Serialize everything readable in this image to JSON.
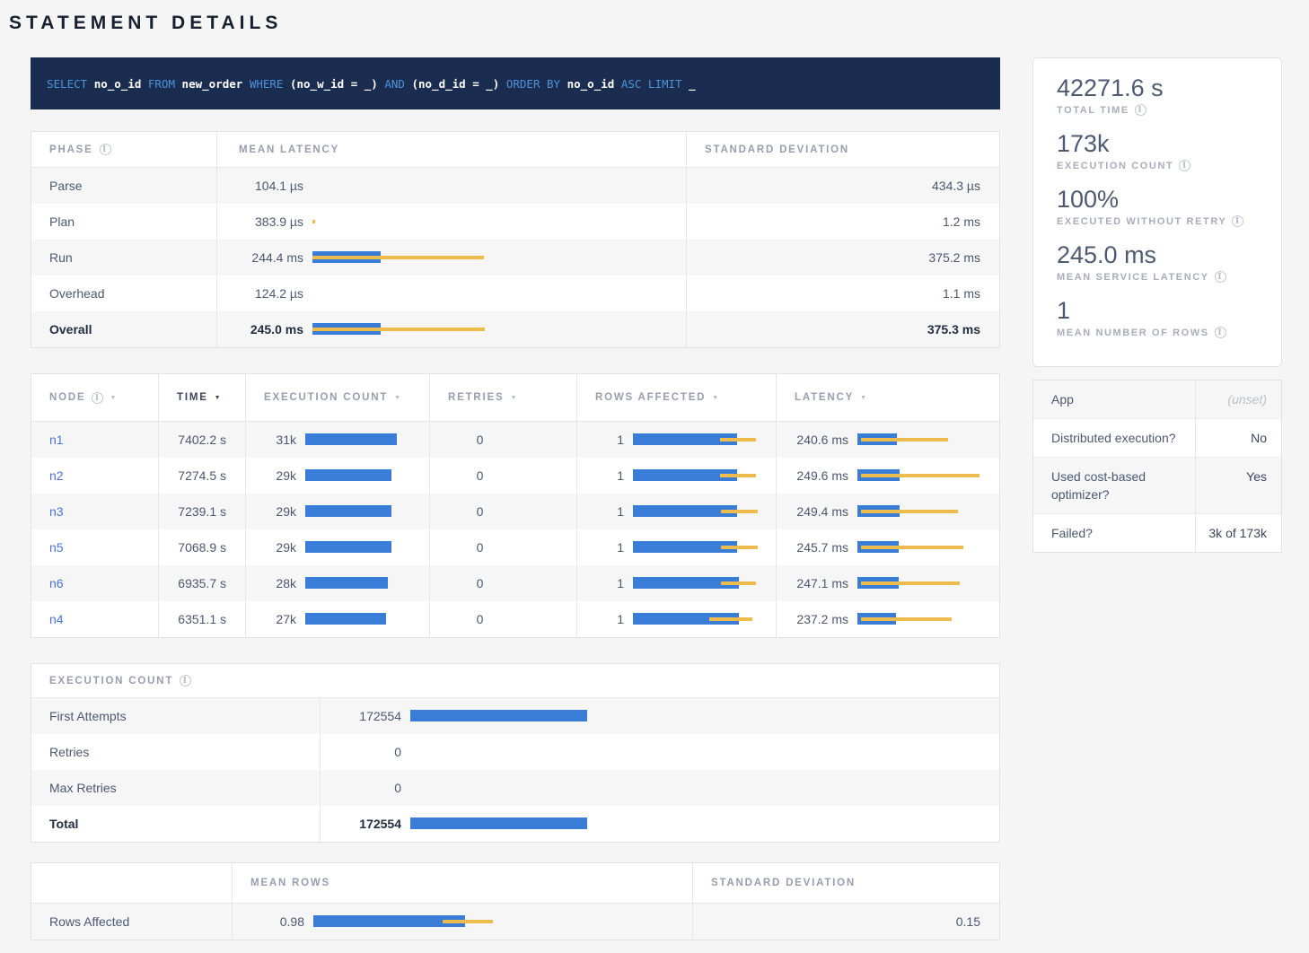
{
  "page": {
    "title": "STATEMENT DETAILS"
  },
  "sql": {
    "tokens": [
      {
        "text": "SELECT",
        "type": "kw"
      },
      {
        "text": "no_o_id",
        "type": "id"
      },
      {
        "text": "FROM",
        "type": "kw"
      },
      {
        "text": "new_order",
        "type": "id"
      },
      {
        "text": "WHERE",
        "type": "kw"
      },
      {
        "text": "(no_w_id = _)",
        "type": "id"
      },
      {
        "text": "AND",
        "type": "kw"
      },
      {
        "text": "(no_d_id = _)",
        "type": "id"
      },
      {
        "text": "ORDER BY",
        "type": "kw"
      },
      {
        "text": "no_o_id",
        "type": "id"
      },
      {
        "text": "ASC LIMIT",
        "type": "kw"
      },
      {
        "text": "_",
        "type": "id"
      }
    ]
  },
  "phase_table": {
    "columns": [
      "PHASE",
      "MEAN LATENCY",
      "STANDARD DEVIATION"
    ],
    "rows": [
      {
        "phase": "Parse",
        "mean": "104.1 µs",
        "std": "434.3 µs",
        "bar": null,
        "bold": false
      },
      {
        "phase": "Plan",
        "mean": "383.9 µs",
        "std": "1.2 ms",
        "bar": {
          "yellow": [
            0,
            0.7
          ]
        },
        "bold": false
      },
      {
        "phase": "Run",
        "mean": "244.4 ms",
        "std": "375.2 ms",
        "bar": {
          "blue": [
            0,
            18.6
          ],
          "yellow": [
            0,
            47
          ]
        },
        "bold": false
      },
      {
        "phase": "Overhead",
        "mean": "124.2 µs",
        "std": "1.1 ms",
        "bar": null,
        "bold": false
      },
      {
        "phase": "Overall",
        "mean": "245.0 ms",
        "std": "375.3 ms",
        "bar": {
          "blue": [
            0,
            18.7
          ],
          "yellow": [
            0,
            47.3
          ]
        },
        "bold": true
      }
    ]
  },
  "node_table": {
    "columns": [
      {
        "label": "NODE",
        "info": true,
        "active": false
      },
      {
        "label": "TIME",
        "info": false,
        "active": true
      },
      {
        "label": "EXECUTION COUNT",
        "info": false,
        "active": false
      },
      {
        "label": "RETRIES",
        "info": false,
        "active": false
      },
      {
        "label": "ROWS AFFECTED",
        "info": false,
        "active": false
      },
      {
        "label": "LATENCY",
        "info": false,
        "active": false
      }
    ],
    "rows": [
      {
        "node": "n1",
        "time": "7402.2 s",
        "exec_count": "31k",
        "exec_bar": {
          "blue": [
            0,
            80
          ]
        },
        "retries": "0",
        "rows_affected": "1",
        "rows_bar": {
          "blue": [
            0,
            78
          ],
          "yellow": [
            65,
            92
          ]
        },
        "latency": "240.6 ms",
        "latency_bar": {
          "blue": [
            0,
            30
          ],
          "yellow": [
            3,
            68
          ]
        }
      },
      {
        "node": "n2",
        "time": "7274.5 s",
        "exec_count": "29k",
        "exec_bar": {
          "blue": [
            0,
            75
          ]
        },
        "retries": "0",
        "rows_affected": "1",
        "rows_bar": {
          "blue": [
            0,
            78
          ],
          "yellow": [
            65,
            92
          ]
        },
        "latency": "249.6 ms",
        "latency_bar": {
          "blue": [
            0,
            32
          ],
          "yellow": [
            3,
            92
          ]
        }
      },
      {
        "node": "n3",
        "time": "7239.1 s",
        "exec_count": "29k",
        "exec_bar": {
          "blue": [
            0,
            75
          ]
        },
        "retries": "0",
        "rows_affected": "1",
        "rows_bar": {
          "blue": [
            0,
            78
          ],
          "yellow": [
            66,
            93
          ]
        },
        "latency": "249.4 ms",
        "latency_bar": {
          "blue": [
            0,
            32
          ],
          "yellow": [
            3,
            76
          ]
        }
      },
      {
        "node": "n5",
        "time": "7068.9 s",
        "exec_count": "29k",
        "exec_bar": {
          "blue": [
            0,
            75
          ]
        },
        "retries": "0",
        "rows_affected": "1",
        "rows_bar": {
          "blue": [
            0,
            78
          ],
          "yellow": [
            66,
            93
          ]
        },
        "latency": "245.7 ms",
        "latency_bar": {
          "blue": [
            0,
            31
          ],
          "yellow": [
            3,
            80
          ]
        }
      },
      {
        "node": "n6",
        "time": "6935.7 s",
        "exec_count": "28k",
        "exec_bar": {
          "blue": [
            0,
            72
          ]
        },
        "retries": "0",
        "rows_affected": "1",
        "rows_bar": {
          "blue": [
            0,
            79
          ],
          "yellow": [
            66,
            92
          ]
        },
        "latency": "247.1 ms",
        "latency_bar": {
          "blue": [
            0,
            31
          ],
          "yellow": [
            3,
            77
          ]
        }
      },
      {
        "node": "n4",
        "time": "6351.1 s",
        "exec_count": "27k",
        "exec_bar": {
          "blue": [
            0,
            70
          ]
        },
        "retries": "0",
        "rows_affected": "1",
        "rows_bar": {
          "blue": [
            0,
            79
          ],
          "yellow": [
            57,
            89
          ]
        },
        "latency": "237.2 ms",
        "latency_bar": {
          "blue": [
            0,
            29
          ],
          "yellow": [
            3,
            71
          ]
        }
      }
    ]
  },
  "exec_table": {
    "title": "EXECUTION COUNT",
    "rows": [
      {
        "label": "First Attempts",
        "value": "172554",
        "bar": {
          "blue": [
            0,
            30.5
          ]
        },
        "bold": false
      },
      {
        "label": "Retries",
        "value": "0",
        "bar": null,
        "bold": false
      },
      {
        "label": "Max Retries",
        "value": "0",
        "bar": null,
        "bold": false
      },
      {
        "label": "Total",
        "value": "172554",
        "bar": {
          "blue": [
            0,
            30.5
          ]
        },
        "bold": true
      }
    ]
  },
  "rows_table": {
    "columns": [
      "",
      "MEAN ROWS",
      "STANDARD DEVIATION"
    ],
    "rows": [
      {
        "label": "Rows Affected",
        "mean": "0.98",
        "bar": {
          "blue": [
            0,
            41
          ],
          "yellow": [
            35,
            48.5
          ]
        },
        "std": "0.15"
      }
    ]
  },
  "sidebar": {
    "stats": [
      {
        "value": "42271.6 s",
        "label": "TOTAL TIME"
      },
      {
        "value": "173k",
        "label": "EXECUTION COUNT"
      },
      {
        "value": "100%",
        "label": "EXECUTED WITHOUT RETRY"
      },
      {
        "value": "245.0 ms",
        "label": "MEAN SERVICE LATENCY"
      },
      {
        "value": "1",
        "label": "MEAN NUMBER OF ROWS"
      }
    ],
    "details": {
      "rows": [
        {
          "label": "App",
          "value": "(unset)",
          "unset": true
        },
        {
          "label": "Distributed execution?",
          "value": "No",
          "unset": false
        },
        {
          "label": "Used cost-based optimizer?",
          "value": "Yes",
          "unset": false
        },
        {
          "label": "Failed?",
          "value": "3k of 173k",
          "unset": false
        }
      ]
    }
  },
  "colors": {
    "bar_blue": "#3a7dd8",
    "bar_yellow": "#eebb4d",
    "link_blue": "#4a72d9",
    "sql_background": "#1b2c51",
    "sql_keyword": "#4d93d8"
  }
}
